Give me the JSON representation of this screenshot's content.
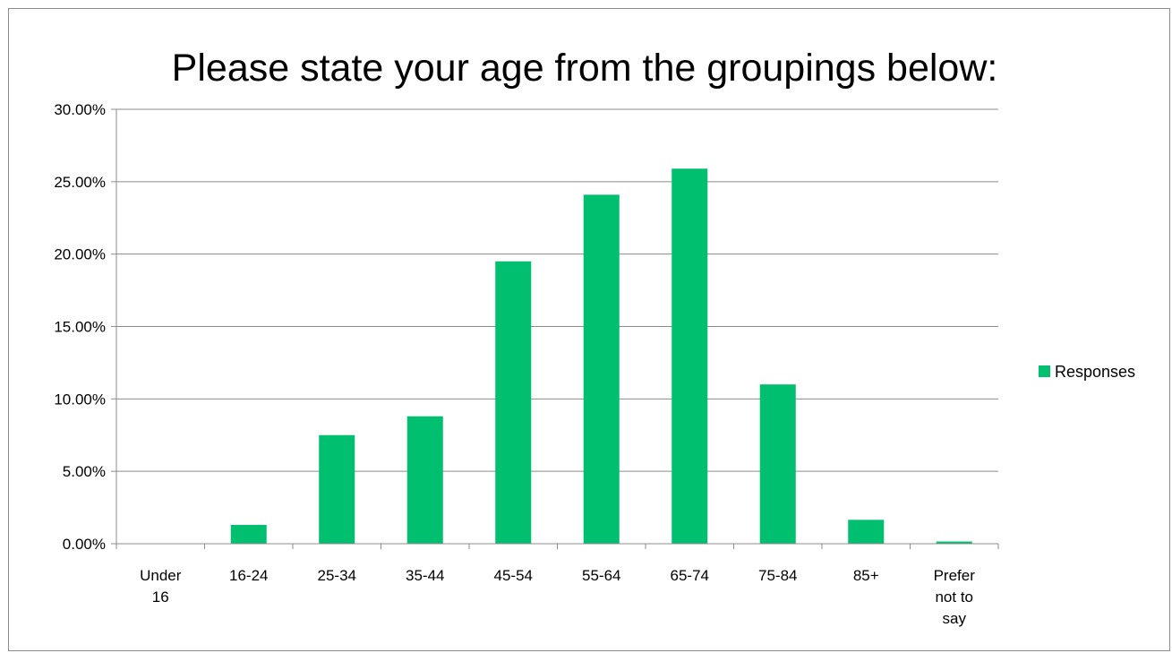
{
  "chart_data": {
    "type": "bar",
    "title": "Please state your age from the groupings below:",
    "xlabel": "",
    "ylabel": "",
    "categories": [
      [
        "Under",
        "16"
      ],
      [
        "16-24"
      ],
      [
        "25-34"
      ],
      [
        "35-44"
      ],
      [
        "45-54"
      ],
      [
        "55-64"
      ],
      [
        "65-74"
      ],
      [
        "75-84"
      ],
      [
        "85+"
      ],
      [
        "Prefer",
        "not to",
        "say"
      ]
    ],
    "series": [
      {
        "name": "Responses",
        "color": "#00bf6f",
        "values": [
          0.0,
          1.3,
          7.5,
          8.8,
          19.5,
          24.1,
          25.9,
          11.0,
          1.65,
          0.15
        ]
      }
    ],
    "ylim": [
      0,
      30
    ],
    "yticks": [
      0,
      5,
      10,
      15,
      20,
      25,
      30
    ],
    "ytick_labels": [
      "0.00%",
      "5.00%",
      "10.00%",
      "15.00%",
      "20.00%",
      "25.00%",
      "30.00%"
    ],
    "grid": true,
    "legend": "right"
  }
}
